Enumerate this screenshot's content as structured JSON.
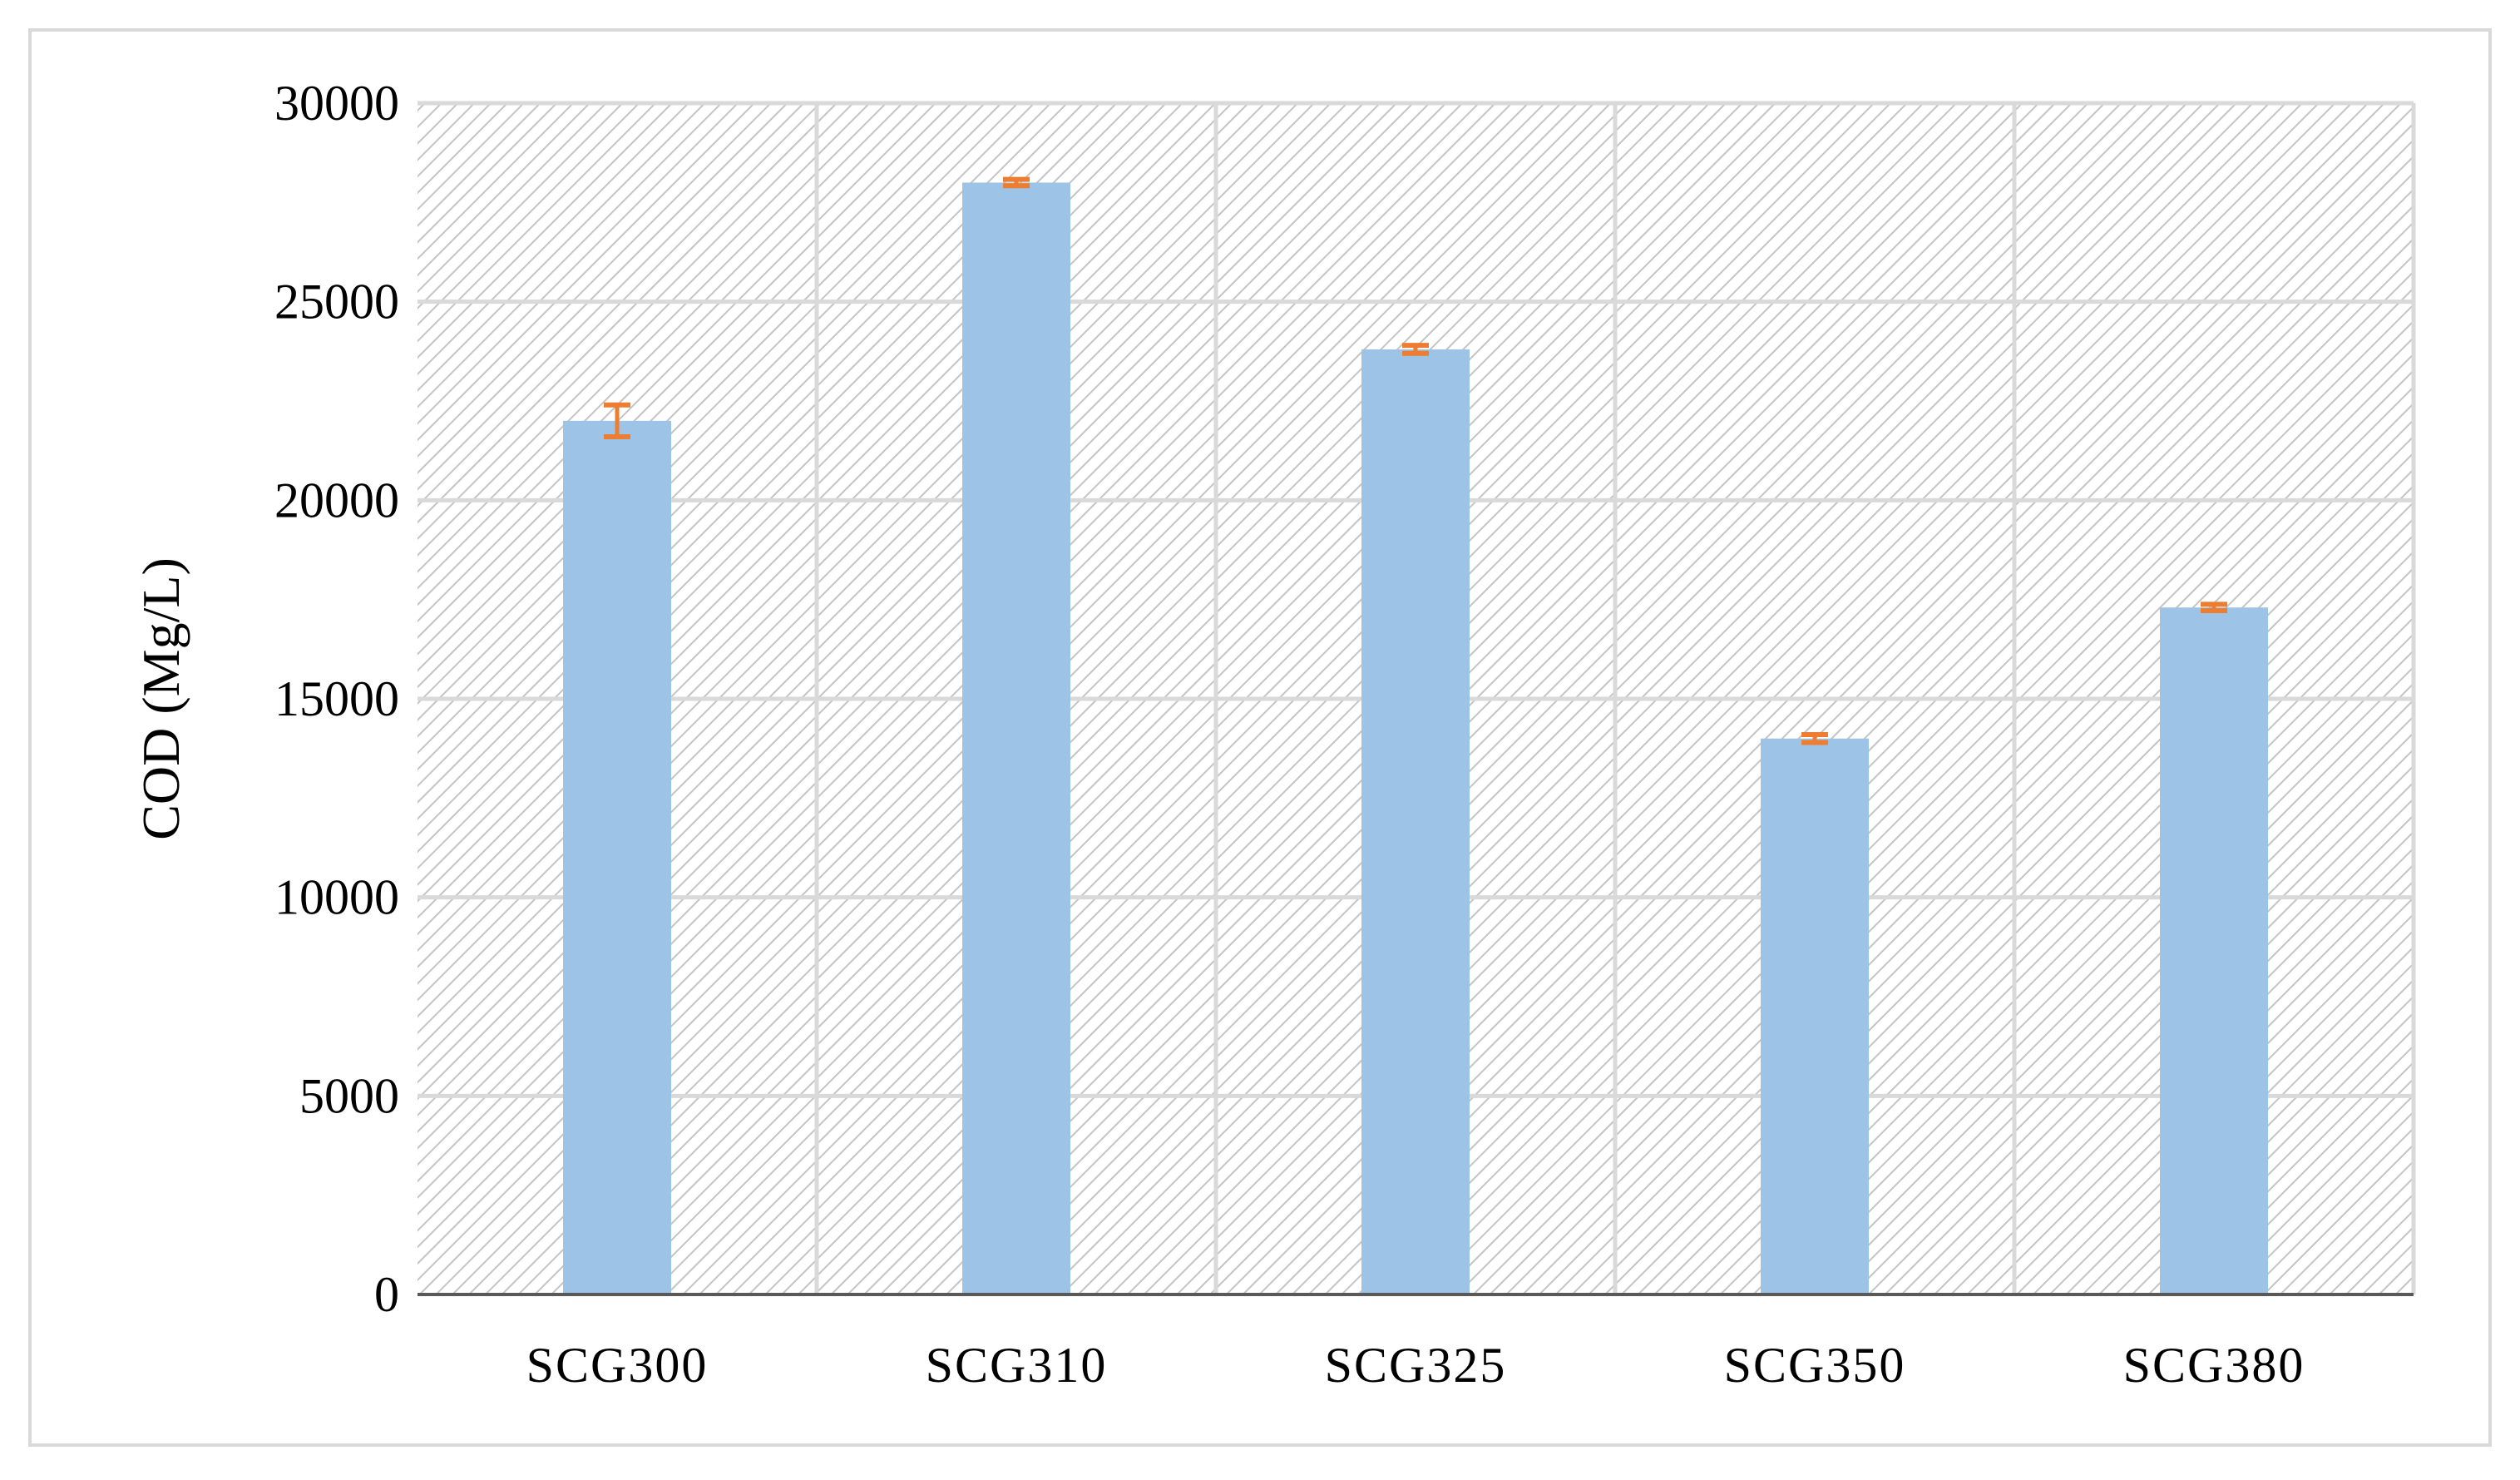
{
  "chart_data": {
    "type": "bar",
    "title": "",
    "xlabel": "",
    "ylabel": "COD (Mg/L)",
    "categories": [
      "SCG300",
      "SCG310",
      "SCG325",
      "SCG350",
      "SCG380"
    ],
    "series": [
      {
        "values": [
          22000,
          28000,
          23800,
          14000,
          17300
        ],
        "errors": [
          400,
          80,
          100,
          100,
          80
        ],
        "color": "#9dc3e6",
        "error_color": "#ed7d31"
      }
    ],
    "ylim": [
      0,
      30000
    ],
    "yticks": [
      0,
      5000,
      10000,
      15000,
      20000,
      25000,
      30000
    ],
    "ytick_labels": [
      "0",
      "5000",
      "10000",
      "15000",
      "20000",
      "25000",
      "30000"
    ],
    "grid": true,
    "plot_background": "hatched-gray",
    "legend": "none"
  }
}
